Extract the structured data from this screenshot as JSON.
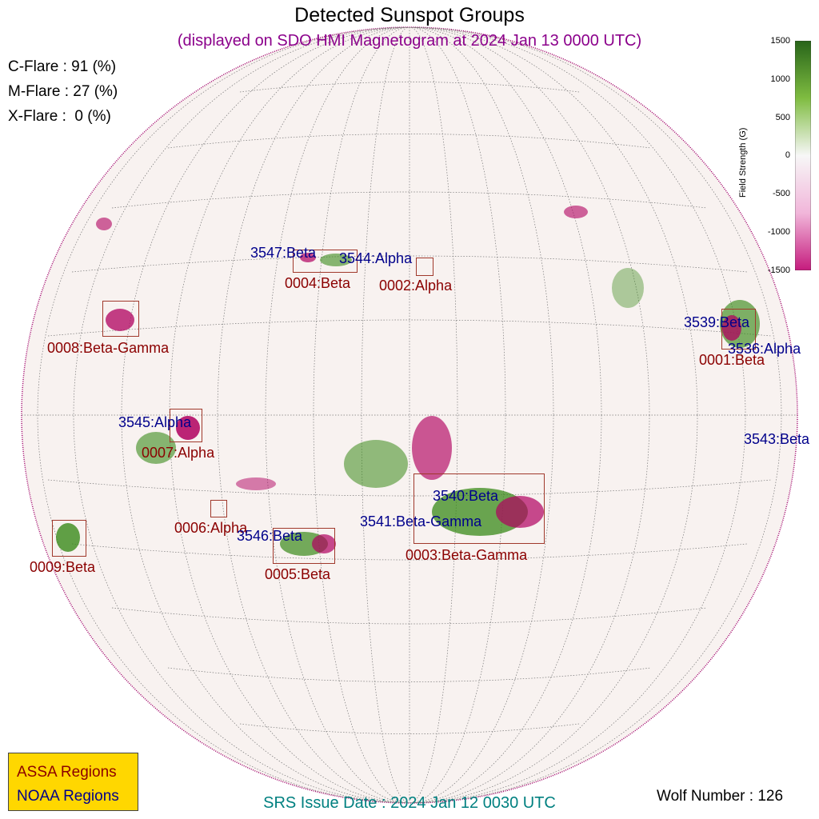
{
  "header": {
    "title": "Detected Sunspot Groups",
    "subtitle": "(displayed on SDO HMI Magnetogram at 2024 Jan 13 0000 UTC)"
  },
  "flare_probabilities": {
    "c": "C-Flare : 91 (%)",
    "m": "M-Flare : 27 (%)",
    "x": "X-Flare :  0 (%)"
  },
  "colorbar": {
    "label": "Field Strength (G)",
    "ticks": [
      "1500",
      "1000",
      "500",
      "0",
      "-500",
      "-1000",
      "-1500"
    ],
    "color_positive": "#2e7d0e",
    "color_zero": "#f7f7f7",
    "color_negative": "#c0006a"
  },
  "assa_regions": [
    {
      "label": "0001:Beta"
    },
    {
      "label": "0002:Alpha"
    },
    {
      "label": "0003:Beta-Gamma"
    },
    {
      "label": "0004:Beta"
    },
    {
      "label": "0005:Beta"
    },
    {
      "label": "0006:Alpha"
    },
    {
      "label": "0007:Alpha"
    },
    {
      "label": "0008:Beta-Gamma"
    },
    {
      "label": "0009:Beta"
    }
  ],
  "noaa_regions": [
    {
      "label": "3536:Alpha"
    },
    {
      "label": "3539:Beta"
    },
    {
      "label": "3540:Beta"
    },
    {
      "label": "3541:Beta-Gamma"
    },
    {
      "label": "3543:Beta"
    },
    {
      "label": "3544:Alpha"
    },
    {
      "label": "3545:Alpha"
    },
    {
      "label": "3546:Beta"
    },
    {
      "label": "3547:Beta"
    }
  ],
  "legend": {
    "assa": "ASSA Regions",
    "noaa": "NOAA Regions",
    "assa_color": "#8b0000",
    "noaa_color": "#00008b",
    "background": "#ffd700"
  },
  "footer": {
    "srs": "SRS Issue Date : 2024 Jan 12 0030 UTC",
    "wolf": "Wolf Number : 126"
  }
}
